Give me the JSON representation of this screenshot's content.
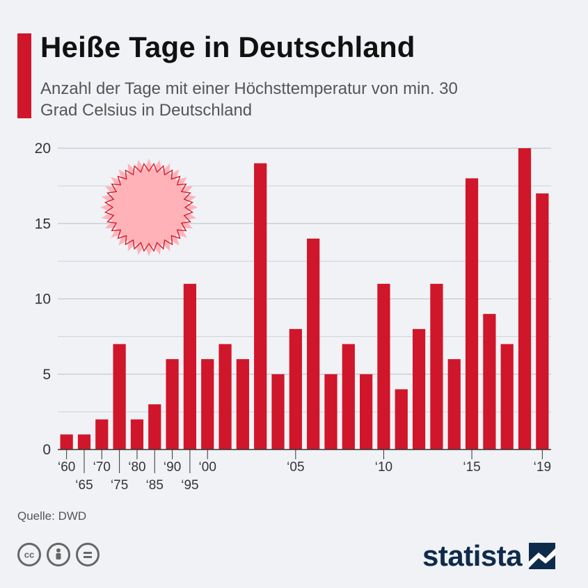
{
  "header": {
    "title": "Heiße Tage in Deutschland",
    "subtitle": "Anzahl der Tage mit einer Höchsttemperatur von min. 30 Grad Celsius in Deutschland"
  },
  "footer": {
    "source": "Quelle: DWD",
    "brand": "statista",
    "license_icons": [
      "cc-icon",
      "by-icon",
      "nd-icon"
    ]
  },
  "colors": {
    "bar": "#d0162a",
    "title_accent": "#d0162a",
    "sun_fill": "#ffb3b8",
    "sun_stroke": "#d0162a",
    "brand": "#0f2b4c"
  },
  "chart_data": {
    "type": "bar",
    "title": "Heiße Tage in Deutschland",
    "subtitle": "Anzahl der Tage mit einer Höchsttemperatur von min. 30 Grad Celsius in Deutschland",
    "categories": [
      "1960",
      "1965",
      "1970",
      "1975",
      "1980",
      "1985",
      "1990",
      "1995",
      "2000",
      "2001",
      "2002",
      "2003",
      "2004",
      "2005",
      "2006",
      "2007",
      "2008",
      "2009",
      "2010",
      "2011",
      "2012",
      "2013",
      "2014",
      "2015",
      "2016",
      "2017",
      "2018",
      "2019"
    ],
    "values": [
      1,
      1,
      2,
      7,
      2,
      3,
      6,
      11,
      6,
      7,
      6,
      19,
      5,
      8,
      14,
      5,
      7,
      5,
      11,
      4,
      8,
      11,
      6,
      18,
      9,
      7,
      20,
      17
    ],
    "tick_labels": [
      {
        "index": 0,
        "label": "‘60",
        "row": 0
      },
      {
        "index": 1,
        "label": "‘65",
        "row": 1
      },
      {
        "index": 2,
        "label": "‘70",
        "row": 0
      },
      {
        "index": 3,
        "label": "‘75",
        "row": 1
      },
      {
        "index": 4,
        "label": "‘80",
        "row": 0
      },
      {
        "index": 5,
        "label": "‘85",
        "row": 1
      },
      {
        "index": 6,
        "label": "‘90",
        "row": 0
      },
      {
        "index": 7,
        "label": "‘95",
        "row": 1
      },
      {
        "index": 8,
        "label": "‘00",
        "row": 0
      },
      {
        "index": 13,
        "label": "‘05",
        "row": 0
      },
      {
        "index": 18,
        "label": "‘10",
        "row": 0
      },
      {
        "index": 23,
        "label": "‘15",
        "row": 0
      },
      {
        "index": 27,
        "label": "‘19",
        "row": 0
      }
    ],
    "yticks": [
      0,
      5,
      10,
      15,
      20
    ],
    "ylim": [
      0,
      20
    ],
    "xlabel": "",
    "ylabel": "",
    "grid": true,
    "legend": "none"
  }
}
